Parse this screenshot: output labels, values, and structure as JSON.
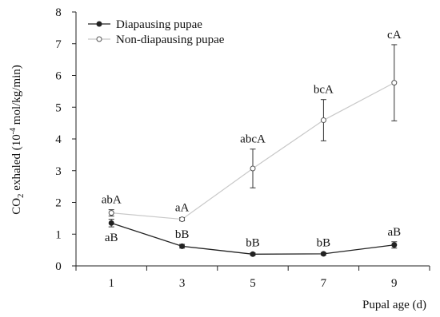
{
  "chart_data": {
    "type": "line",
    "title": "",
    "xlabel": "Pupal age (d)",
    "ylabel_main": "CO",
    "ylabel_sub": "2",
    "ylabel_rest": " exhaled (10",
    "ylabel_sup": "-4",
    "ylabel_tail": " mol/kg/min)",
    "x": [
      1,
      3,
      5,
      7,
      9
    ],
    "xlim": [
      0,
      10
    ],
    "ylim": [
      0,
      8
    ],
    "yticks": [
      0,
      1,
      2,
      3,
      4,
      5,
      6,
      7,
      8
    ],
    "grid": false,
    "legend_position": "top-left",
    "series": [
      {
        "name": "Diapausing pupae",
        "marker": "filled-circle",
        "color": "#222222",
        "values": [
          1.35,
          0.62,
          0.37,
          0.38,
          0.66
        ],
        "errors": [
          0.12,
          0.06,
          0.04,
          0.04,
          0.1
        ],
        "labels": [
          "aB",
          "bB",
          "bB",
          "bB",
          "aB"
        ]
      },
      {
        "name": "Non-diapausing pupae",
        "marker": "open-circle",
        "color": "#c8c8c8",
        "values": [
          1.67,
          1.47,
          3.07,
          4.59,
          5.77
        ],
        "errors": [
          0.1,
          0.05,
          0.61,
          0.65,
          1.2
        ],
        "labels": [
          "abA",
          "aA",
          "abcA",
          "bcA",
          "cA"
        ]
      }
    ]
  }
}
